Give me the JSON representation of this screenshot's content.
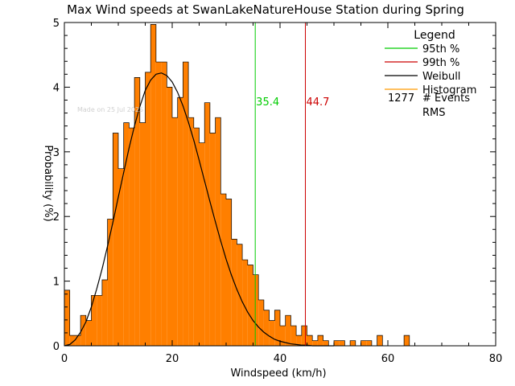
{
  "chart_data": {
    "type": "bar",
    "title": "Max Wind speeds at SwanLakeNatureHouse Station during Spring",
    "xlabel": "Windspeed (km/h)",
    "ylabel": "Probability (%)",
    "xlim": [
      0,
      80
    ],
    "ylim": [
      0,
      5
    ],
    "xticks": [
      0,
      20,
      40,
      60,
      80
    ],
    "yticks": [
      0,
      1,
      2,
      3,
      4,
      5
    ],
    "watermark": "Made on 25 Jul 2025",
    "bin_width": 1,
    "bins_start": [
      0,
      1,
      2,
      3,
      4,
      5,
      6,
      7,
      8,
      9,
      10,
      11,
      12,
      13,
      14,
      15,
      16,
      17,
      18,
      19,
      20,
      21,
      22,
      23,
      24,
      25,
      26,
      27,
      28,
      29,
      30,
      31,
      32,
      33,
      34,
      35,
      36,
      37,
      38,
      39,
      40,
      41,
      42,
      43,
      44,
      45,
      46,
      47,
      48,
      49,
      50,
      51,
      52,
      53,
      54,
      55,
      56,
      57,
      58,
      59,
      60,
      61,
      62,
      63,
      64
    ],
    "histogram": [
      0.86,
      0.16,
      0.16,
      0.47,
      0.39,
      0.78,
      0.78,
      1.02,
      1.96,
      3.29,
      2.74,
      3.45,
      3.37,
      4.15,
      3.45,
      4.23,
      4.97,
      4.39,
      4.39,
      4.0,
      3.53,
      3.84,
      4.39,
      3.53,
      3.37,
      3.14,
      3.76,
      3.29,
      3.53,
      2.35,
      2.27,
      1.65,
      1.57,
      1.33,
      1.25,
      1.1,
      0.71,
      0.55,
      0.39,
      0.55,
      0.31,
      0.47,
      0.31,
      0.16,
      0.31,
      0.16,
      0.08,
      0.16,
      0.08,
      0.0,
      0.08,
      0.08,
      0.0,
      0.08,
      0.0,
      0.08,
      0.08,
      0.0,
      0.16,
      0.0,
      0.0,
      0.0,
      0.0,
      0.16,
      0.0
    ],
    "weibull_fit": {
      "x": [
        0,
        1,
        2,
        3,
        4,
        5,
        6,
        7,
        8,
        9,
        10,
        11,
        12,
        13,
        14,
        15,
        16,
        17,
        18,
        19,
        20,
        21,
        22,
        23,
        24,
        25,
        26,
        27,
        28,
        29,
        30,
        31,
        32,
        33,
        34,
        35,
        36,
        37,
        38,
        39,
        40,
        41,
        42,
        43,
        44,
        45,
        46,
        47,
        48,
        49,
        50
      ],
      "y": [
        0,
        0.02,
        0.09,
        0.21,
        0.37,
        0.6,
        0.88,
        1.19,
        1.54,
        1.91,
        2.3,
        2.68,
        3.06,
        3.4,
        3.7,
        3.95,
        4.11,
        4.2,
        4.22,
        4.18,
        4.08,
        3.92,
        3.71,
        3.46,
        3.18,
        2.87,
        2.55,
        2.23,
        1.92,
        1.62,
        1.34,
        1.09,
        0.87,
        0.68,
        0.52,
        0.39,
        0.29,
        0.21,
        0.15,
        0.1,
        0.07,
        0.05,
        0.03,
        0.02,
        0.01,
        0.01,
        0.0,
        0.0,
        0.0,
        0.0,
        0.0
      ]
    },
    "percentile_95": {
      "value": 35.4,
      "label": "35.4",
      "color": "#00cc00"
    },
    "percentile_99": {
      "value": 44.7,
      "label": "44.7",
      "color": "#cc0000"
    },
    "colors": {
      "histogram": "#ff7f00",
      "histogram_edge": "#000000",
      "weibull": "#000000"
    },
    "legend": {
      "title": "Legend",
      "placement": "top-right",
      "entries": [
        {
          "label": "95th %",
          "color": "#00cc00"
        },
        {
          "label": "99th %",
          "color": "#cc0000"
        },
        {
          "label": "Weibull",
          "color": "#000000"
        },
        {
          "label": "Histogram",
          "color": "#ff9a00"
        }
      ],
      "events_count": "1277",
      "events_label": "# Events",
      "rms_label": "RMS"
    }
  }
}
